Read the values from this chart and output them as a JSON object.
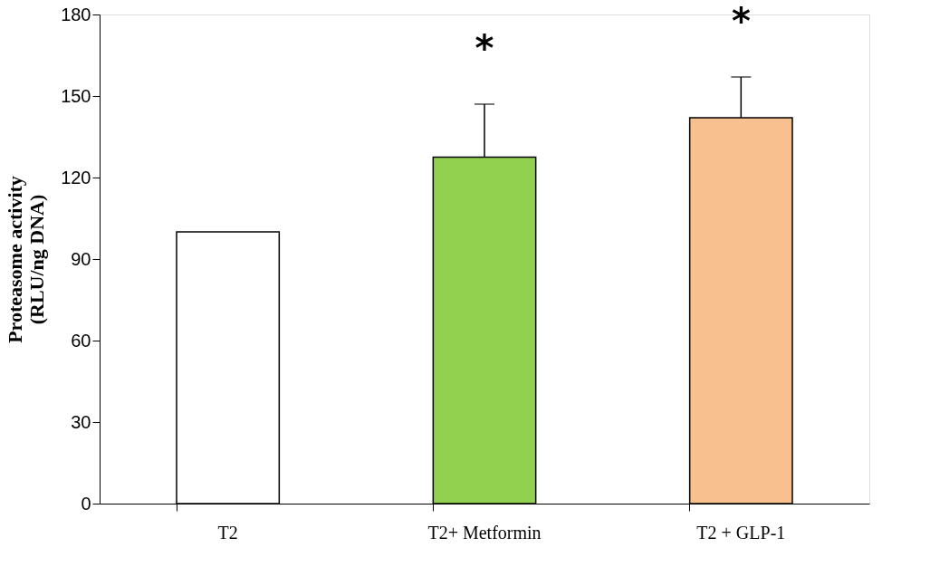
{
  "chart_data": {
    "type": "bar",
    "ylabel": "Proteasome  activity\n(RLU/ng DNA)",
    "categories": [
      "T2",
      "T2+ Metformin",
      "T2 + GLP-1"
    ],
    "values": [
      100,
      127.5,
      142
    ],
    "colors": [
      "#ffffff",
      "#92d050",
      "#f8c08f"
    ],
    "errors": [
      null,
      [
        127.5,
        147
      ],
      [
        142,
        157
      ]
    ],
    "annotations": [
      "*",
      "*"
    ],
    "ylim": [
      0,
      180
    ],
    "yticks": [
      0,
      30,
      60,
      90,
      120,
      150,
      180
    ],
    "grid": false
  }
}
